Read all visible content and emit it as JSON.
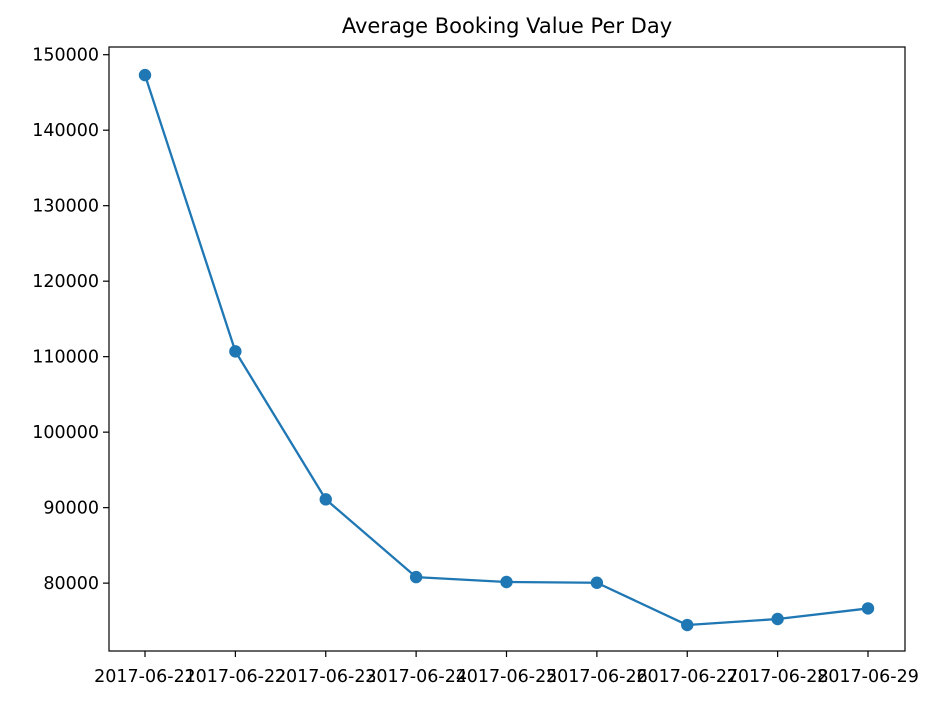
{
  "chart_data": {
    "type": "line",
    "title": "Average Booking Value Per Day",
    "xlabel": "",
    "ylabel": "",
    "x": [
      "2017-06-21",
      "2017-06-22",
      "2017-06-23",
      "2017-06-24",
      "2017-06-25",
      "2017-06-26",
      "2017-06-27",
      "2017-06-28",
      "2017-06-29"
    ],
    "series": [
      {
        "values": [
          147300,
          110700,
          91100,
          80800,
          80150,
          80050,
          74450,
          75250,
          76650
        ],
        "color": "#1f77b4",
        "marker": "circle"
      }
    ],
    "yticks": [
      80000,
      90000,
      100000,
      110000,
      120000,
      130000,
      140000,
      150000
    ],
    "ylim": [
      71010,
      151020
    ],
    "grid": false,
    "legend": false
  }
}
